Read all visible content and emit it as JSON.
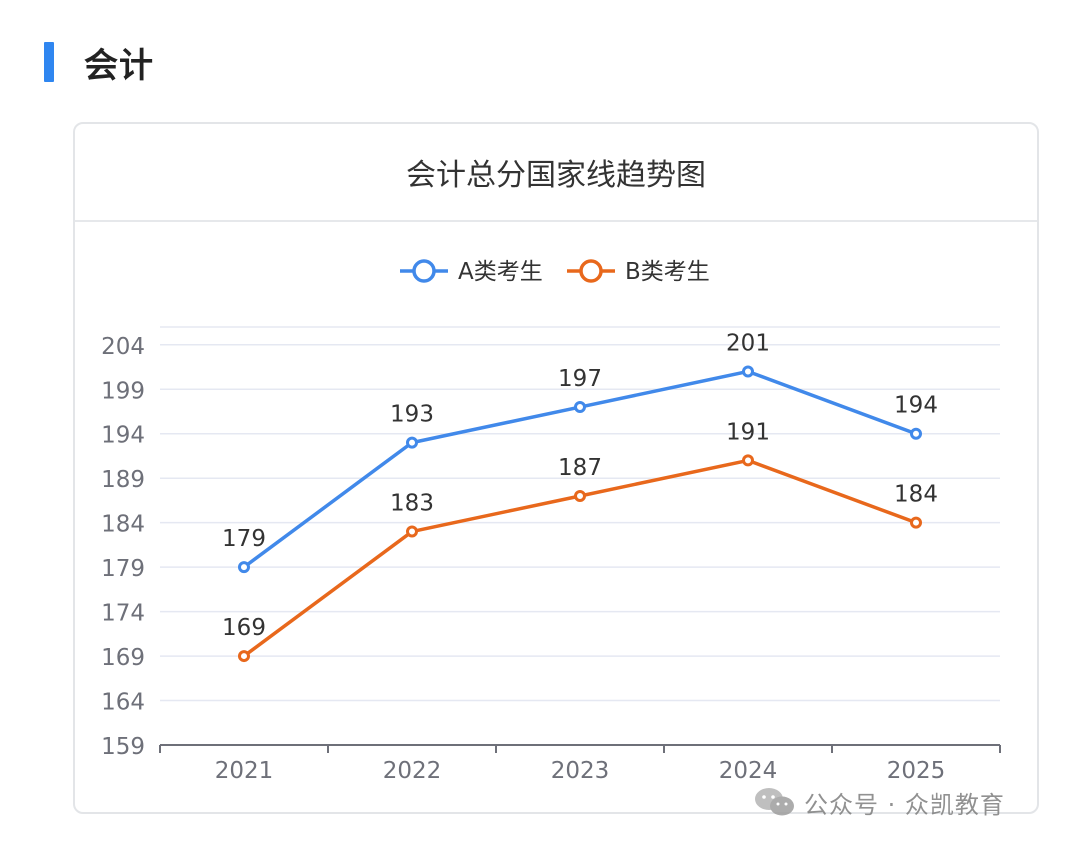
{
  "section": {
    "title": "会计"
  },
  "card": {
    "title": "会计总分国家线趋势图"
  },
  "watermark": {
    "text": "公众号 · 众凯教育",
    "icon": "wechat-icon"
  },
  "colors": {
    "accent": "#2f86f0",
    "seriesA": "#4189ea",
    "seriesB": "#e8681c",
    "grid": "#e5e8f2",
    "axis": "#6e7079"
  },
  "chart_data": {
    "type": "line",
    "title": "会计总分国家线趋势图",
    "categories": [
      "2021",
      "2022",
      "2023",
      "2024",
      "2025"
    ],
    "series": [
      {
        "name": "A类考生",
        "values": [
          179,
          193,
          197,
          201,
          194
        ]
      },
      {
        "name": "B类考生",
        "values": [
          169,
          183,
          187,
          191,
          184
        ]
      }
    ],
    "yticks": [
      159,
      164,
      169,
      174,
      179,
      184,
      189,
      194,
      199,
      204
    ],
    "ylim": [
      159,
      206
    ],
    "grid": true,
    "legend": "top-center",
    "data_labels": true
  }
}
